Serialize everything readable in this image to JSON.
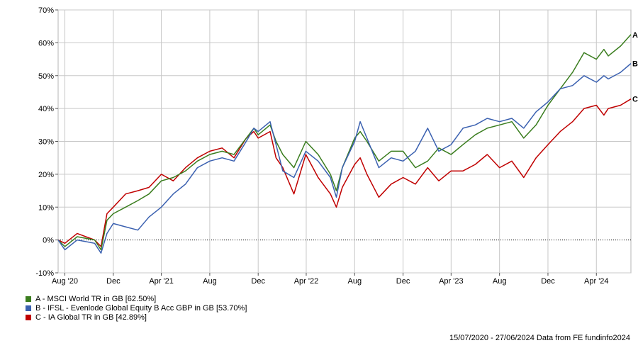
{
  "chart_data": {
    "type": "line",
    "y_tick_labels": [
      "-10%",
      "0%",
      "10%",
      "20%",
      "30%",
      "40%",
      "50%",
      "60%",
      "70%"
    ],
    "y_ticks": [
      -10,
      0,
      10,
      20,
      30,
      40,
      50,
      60,
      70
    ],
    "ylim": [
      -10,
      70
    ],
    "xlim": [
      "2020-07-15",
      "2024-06-27"
    ],
    "x_tick_labels": [
      "Aug '20",
      "Dec",
      "Apr '21",
      "Aug",
      "Dec",
      "Apr '22",
      "Aug",
      "Dec",
      "Apr '23",
      "Aug",
      "Dec",
      "Apr '24"
    ],
    "x_ticks": [
      "2020-08-01",
      "2020-12-01",
      "2021-04-01",
      "2021-08-01",
      "2021-12-01",
      "2022-04-01",
      "2022-08-01",
      "2022-12-01",
      "2023-04-01",
      "2023-08-01",
      "2023-12-01",
      "2024-04-01"
    ],
    "grid": true,
    "zero_line": "dotted",
    "series": [
      {
        "name": "A",
        "color": "#3a7d1e",
        "points": [
          [
            "2020-07-15",
            0
          ],
          [
            "2020-08-01",
            -2
          ],
          [
            "2020-09-01",
            1
          ],
          [
            "2020-10-15",
            0
          ],
          [
            "2020-10-31",
            -3
          ],
          [
            "2020-11-15",
            6
          ],
          [
            "2020-12-01",
            8
          ],
          [
            "2021-01-01",
            10
          ],
          [
            "2021-02-01",
            12
          ],
          [
            "2021-03-01",
            14
          ],
          [
            "2021-04-01",
            18
          ],
          [
            "2021-05-01",
            19
          ],
          [
            "2021-06-01",
            21
          ],
          [
            "2021-07-01",
            24
          ],
          [
            "2021-08-01",
            26
          ],
          [
            "2021-09-01",
            27
          ],
          [
            "2021-10-01",
            26
          ],
          [
            "2021-11-01",
            31
          ],
          [
            "2021-11-20",
            34
          ],
          [
            "2021-12-01",
            32
          ],
          [
            "2021-12-31",
            35
          ],
          [
            "2022-01-15",
            30
          ],
          [
            "2022-02-01",
            26
          ],
          [
            "2022-03-01",
            22
          ],
          [
            "2022-03-31",
            30
          ],
          [
            "2022-05-01",
            26
          ],
          [
            "2022-06-01",
            20
          ],
          [
            "2022-06-16",
            15
          ],
          [
            "2022-07-01",
            22
          ],
          [
            "2022-08-01",
            31
          ],
          [
            "2022-08-15",
            33
          ],
          [
            "2022-09-01",
            30
          ],
          [
            "2022-10-01",
            24
          ],
          [
            "2022-11-01",
            27
          ],
          [
            "2022-12-01",
            27
          ],
          [
            "2023-01-01",
            22
          ],
          [
            "2023-02-01",
            24
          ],
          [
            "2023-03-01",
            28
          ],
          [
            "2023-04-01",
            26
          ],
          [
            "2023-05-01",
            29
          ],
          [
            "2023-06-01",
            32
          ],
          [
            "2023-07-01",
            34
          ],
          [
            "2023-08-01",
            35
          ],
          [
            "2023-09-01",
            36
          ],
          [
            "2023-10-01",
            31
          ],
          [
            "2023-11-01",
            35
          ],
          [
            "2023-12-01",
            41
          ],
          [
            "2024-01-01",
            46
          ],
          [
            "2024-02-01",
            51
          ],
          [
            "2024-03-01",
            57
          ],
          [
            "2024-04-01",
            55
          ],
          [
            "2024-04-20",
            58
          ],
          [
            "2024-05-01",
            56
          ],
          [
            "2024-06-01",
            59
          ],
          [
            "2024-06-27",
            62.5
          ]
        ]
      },
      {
        "name": "B",
        "color": "#3a60b0",
        "points": [
          [
            "2020-07-15",
            0
          ],
          [
            "2020-08-01",
            -3
          ],
          [
            "2020-09-01",
            0
          ],
          [
            "2020-10-15",
            -1
          ],
          [
            "2020-10-31",
            -4
          ],
          [
            "2020-11-15",
            2
          ],
          [
            "2020-12-01",
            5
          ],
          [
            "2021-01-01",
            4
          ],
          [
            "2021-02-01",
            3
          ],
          [
            "2021-03-01",
            7
          ],
          [
            "2021-04-01",
            10
          ],
          [
            "2021-05-01",
            14
          ],
          [
            "2021-06-01",
            17
          ],
          [
            "2021-07-01",
            22
          ],
          [
            "2021-08-01",
            24
          ],
          [
            "2021-09-01",
            25
          ],
          [
            "2021-10-01",
            24
          ],
          [
            "2021-11-01",
            30
          ],
          [
            "2021-11-20",
            34
          ],
          [
            "2021-12-01",
            33
          ],
          [
            "2021-12-31",
            36
          ],
          [
            "2022-01-15",
            29
          ],
          [
            "2022-02-01",
            21
          ],
          [
            "2022-03-01",
            19
          ],
          [
            "2022-03-31",
            27
          ],
          [
            "2022-05-01",
            24
          ],
          [
            "2022-06-01",
            19
          ],
          [
            "2022-06-16",
            13
          ],
          [
            "2022-07-01",
            22
          ],
          [
            "2022-08-01",
            30
          ],
          [
            "2022-08-15",
            36
          ],
          [
            "2022-09-01",
            31
          ],
          [
            "2022-10-01",
            22
          ],
          [
            "2022-11-01",
            25
          ],
          [
            "2022-12-01",
            24
          ],
          [
            "2023-01-01",
            27
          ],
          [
            "2023-02-01",
            34
          ],
          [
            "2023-03-01",
            27
          ],
          [
            "2023-04-01",
            29
          ],
          [
            "2023-05-01",
            34
          ],
          [
            "2023-06-01",
            35
          ],
          [
            "2023-07-01",
            37
          ],
          [
            "2023-08-01",
            36
          ],
          [
            "2023-09-01",
            37
          ],
          [
            "2023-10-01",
            34
          ],
          [
            "2023-11-01",
            39
          ],
          [
            "2023-12-01",
            42
          ],
          [
            "2024-01-01",
            46
          ],
          [
            "2024-02-01",
            47
          ],
          [
            "2024-03-01",
            50
          ],
          [
            "2024-04-01",
            48
          ],
          [
            "2024-04-20",
            50
          ],
          [
            "2024-05-01",
            49
          ],
          [
            "2024-06-01",
            51
          ],
          [
            "2024-06-27",
            53.7
          ]
        ]
      },
      {
        "name": "C",
        "color": "#c00000",
        "points": [
          [
            "2020-07-15",
            0
          ],
          [
            "2020-08-01",
            -1
          ],
          [
            "2020-09-01",
            2
          ],
          [
            "2020-10-15",
            0
          ],
          [
            "2020-10-31",
            -2
          ],
          [
            "2020-11-15",
            8
          ],
          [
            "2020-12-01",
            10
          ],
          [
            "2021-01-01",
            14
          ],
          [
            "2021-02-01",
            15
          ],
          [
            "2021-03-01",
            16
          ],
          [
            "2021-04-01",
            20
          ],
          [
            "2021-05-01",
            18
          ],
          [
            "2021-06-01",
            22
          ],
          [
            "2021-07-01",
            25
          ],
          [
            "2021-08-01",
            27
          ],
          [
            "2021-09-01",
            28
          ],
          [
            "2021-10-01",
            25
          ],
          [
            "2021-11-01",
            31
          ],
          [
            "2021-11-20",
            33
          ],
          [
            "2021-12-01",
            31
          ],
          [
            "2021-12-31",
            33
          ],
          [
            "2022-01-15",
            25
          ],
          [
            "2022-02-01",
            22
          ],
          [
            "2022-03-01",
            14
          ],
          [
            "2022-03-31",
            26
          ],
          [
            "2022-05-01",
            19
          ],
          [
            "2022-06-01",
            14
          ],
          [
            "2022-06-16",
            10
          ],
          [
            "2022-07-01",
            16
          ],
          [
            "2022-08-01",
            23
          ],
          [
            "2022-08-15",
            25
          ],
          [
            "2022-09-01",
            20
          ],
          [
            "2022-10-01",
            13
          ],
          [
            "2022-11-01",
            17
          ],
          [
            "2022-12-01",
            19
          ],
          [
            "2023-01-01",
            17
          ],
          [
            "2023-02-01",
            22
          ],
          [
            "2023-03-01",
            18
          ],
          [
            "2023-04-01",
            21
          ],
          [
            "2023-05-01",
            21
          ],
          [
            "2023-06-01",
            23
          ],
          [
            "2023-07-01",
            26
          ],
          [
            "2023-08-01",
            22
          ],
          [
            "2023-09-01",
            24
          ],
          [
            "2023-10-01",
            19
          ],
          [
            "2023-11-01",
            25
          ],
          [
            "2023-12-01",
            29
          ],
          [
            "2024-01-01",
            33
          ],
          [
            "2024-02-01",
            36
          ],
          [
            "2024-03-01",
            40
          ],
          [
            "2024-04-01",
            41
          ],
          [
            "2024-04-20",
            38
          ],
          [
            "2024-05-01",
            40
          ],
          [
            "2024-06-01",
            41
          ],
          [
            "2024-06-27",
            42.89
          ]
        ]
      }
    ]
  },
  "legend": [
    {
      "label": "A - MSCI World TR in GB [62.50%]",
      "color": "#3a7d1e"
    },
    {
      "label": "B - IFSL - Evenlode Global Equity B Acc GBP in GB [53.70%]",
      "color": "#3a60b0"
    },
    {
      "label": "C - IA Global TR in GB [42.89%]",
      "color": "#c00000"
    }
  ],
  "footer": "15/07/2020 - 27/06/2024 Data from FE fundinfo2024"
}
